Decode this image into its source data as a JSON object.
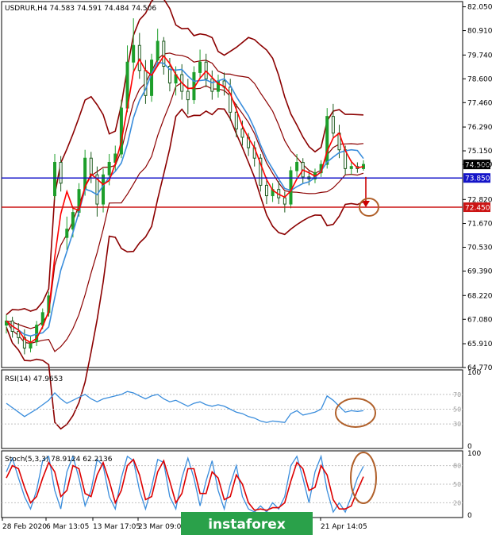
{
  "chart_data": {
    "type": "line",
    "symbol": "USDRUR,H4",
    "header": "USDRUR,H4  74.583 74.591 74.484 74.506",
    "price_axis": {
      "ylim": [
        64.77,
        82.3
      ],
      "ticks": [
        "82.050",
        "80.910",
        "79.740",
        "78.600",
        "77.460",
        "76.290",
        "75.150",
        "74.500",
        "72.820",
        "71.670",
        "70.530",
        "69.390",
        "68.220",
        "67.080",
        "65.910",
        "64.770"
      ],
      "tick_values": [
        82.05,
        80.91,
        79.74,
        78.6,
        77.46,
        76.29,
        75.15,
        74.5,
        72.82,
        71.67,
        70.53,
        69.39,
        68.22,
        67.08,
        65.91,
        64.77
      ]
    },
    "price_tags": [
      {
        "label": "74.500",
        "value": 74.5,
        "color": "#000000"
      },
      {
        "label": "73.850",
        "value": 73.85,
        "color": "#1414c8"
      },
      {
        "label": "72.450",
        "value": 72.45,
        "color": "#cc1414"
      }
    ],
    "x_ticks": [
      "28 Feb 2020",
      "6 Mar 13:05",
      "13 Mar 17:05",
      "23 Mar 09:05",
      "21 Apr 14:05"
    ],
    "candles": [
      {
        "o": 66.8,
        "h": 67.3,
        "l": 66.4,
        "c": 67.0
      },
      {
        "o": 67.0,
        "h": 67.2,
        "l": 66.2,
        "c": 66.5
      },
      {
        "o": 66.5,
        "h": 66.9,
        "l": 65.9,
        "c": 66.2
      },
      {
        "o": 66.2,
        "h": 66.6,
        "l": 65.4,
        "c": 65.7
      },
      {
        "o": 65.7,
        "h": 66.3,
        "l": 65.5,
        "c": 66.0
      },
      {
        "o": 66.0,
        "h": 67.0,
        "l": 65.8,
        "c": 66.8
      },
      {
        "o": 66.8,
        "h": 67.6,
        "l": 66.6,
        "c": 67.4
      },
      {
        "o": 67.4,
        "h": 68.4,
        "l": 67.2,
        "c": 68.2
      },
      {
        "o": 73.0,
        "h": 75.0,
        "l": 72.8,
        "c": 74.6
      },
      {
        "o": 74.6,
        "h": 74.9,
        "l": 73.2,
        "c": 73.6
      },
      {
        "o": 71.0,
        "h": 72.0,
        "l": 70.4,
        "c": 71.4
      },
      {
        "o": 71.4,
        "h": 72.4,
        "l": 71.0,
        "c": 72.2
      },
      {
        "o": 72.2,
        "h": 73.6,
        "l": 72.0,
        "c": 73.3
      },
      {
        "o": 73.3,
        "h": 75.2,
        "l": 73.0,
        "c": 74.8
      },
      {
        "o": 74.8,
        "h": 75.1,
        "l": 73.6,
        "c": 74.0
      },
      {
        "o": 74.0,
        "h": 74.4,
        "l": 72.0,
        "c": 72.6
      },
      {
        "o": 72.6,
        "h": 74.3,
        "l": 72.2,
        "c": 74.0
      },
      {
        "o": 74.0,
        "h": 75.0,
        "l": 73.5,
        "c": 74.6
      },
      {
        "o": 74.6,
        "h": 75.4,
        "l": 74.2,
        "c": 75.0
      },
      {
        "o": 75.0,
        "h": 77.6,
        "l": 74.8,
        "c": 77.2
      },
      {
        "o": 77.2,
        "h": 80.2,
        "l": 77.0,
        "c": 79.4
      },
      {
        "o": 79.4,
        "h": 81.5,
        "l": 79.0,
        "c": 80.2
      },
      {
        "o": 80.2,
        "h": 80.8,
        "l": 78.6,
        "c": 79.0
      },
      {
        "o": 79.0,
        "h": 79.5,
        "l": 77.4,
        "c": 77.8
      },
      {
        "o": 77.8,
        "h": 79.8,
        "l": 77.5,
        "c": 79.5
      },
      {
        "o": 79.5,
        "h": 81.0,
        "l": 79.2,
        "c": 80.4
      },
      {
        "o": 80.4,
        "h": 80.6,
        "l": 78.8,
        "c": 79.2
      },
      {
        "o": 79.2,
        "h": 79.6,
        "l": 78.0,
        "c": 78.4
      },
      {
        "o": 78.4,
        "h": 79.2,
        "l": 77.8,
        "c": 78.8
      },
      {
        "o": 78.8,
        "h": 79.3,
        "l": 77.6,
        "c": 78.0
      },
      {
        "o": 78.0,
        "h": 78.6,
        "l": 76.9,
        "c": 77.6
      },
      {
        "o": 77.6,
        "h": 79.2,
        "l": 77.4,
        "c": 78.9
      },
      {
        "o": 78.9,
        "h": 80.0,
        "l": 78.6,
        "c": 79.4
      },
      {
        "o": 79.4,
        "h": 79.8,
        "l": 78.2,
        "c": 78.6
      },
      {
        "o": 78.6,
        "h": 79.0,
        "l": 77.6,
        "c": 78.0
      },
      {
        "o": 78.0,
        "h": 78.8,
        "l": 77.7,
        "c": 78.5
      },
      {
        "o": 78.5,
        "h": 78.9,
        "l": 77.8,
        "c": 78.2
      },
      {
        "o": 78.2,
        "h": 78.6,
        "l": 76.6,
        "c": 77.0
      },
      {
        "o": 77.0,
        "h": 77.4,
        "l": 75.8,
        "c": 76.2
      },
      {
        "o": 76.2,
        "h": 76.6,
        "l": 75.4,
        "c": 75.8
      },
      {
        "o": 75.8,
        "h": 76.0,
        "l": 74.9,
        "c": 75.3
      },
      {
        "o": 75.3,
        "h": 75.6,
        "l": 74.4,
        "c": 74.8
      },
      {
        "o": 74.8,
        "h": 75.0,
        "l": 73.2,
        "c": 73.5
      },
      {
        "o": 73.5,
        "h": 73.9,
        "l": 72.6,
        "c": 73.0
      },
      {
        "o": 73.0,
        "h": 73.6,
        "l": 72.7,
        "c": 73.3
      },
      {
        "o": 73.3,
        "h": 73.7,
        "l": 72.6,
        "c": 72.9
      },
      {
        "o": 72.9,
        "h": 73.2,
        "l": 72.2,
        "c": 72.6
      },
      {
        "o": 72.6,
        "h": 74.4,
        "l": 72.4,
        "c": 74.2
      },
      {
        "o": 74.2,
        "h": 75.0,
        "l": 73.9,
        "c": 74.6
      },
      {
        "o": 74.6,
        "h": 74.8,
        "l": 73.6,
        "c": 73.9
      },
      {
        "o": 73.9,
        "h": 74.2,
        "l": 73.5,
        "c": 73.8
      },
      {
        "o": 73.8,
        "h": 74.3,
        "l": 73.6,
        "c": 74.1
      },
      {
        "o": 74.1,
        "h": 74.7,
        "l": 73.9,
        "c": 74.5
      },
      {
        "o": 74.5,
        "h": 77.2,
        "l": 74.3,
        "c": 76.8
      },
      {
        "o": 76.8,
        "h": 77.4,
        "l": 75.8,
        "c": 76.0
      },
      {
        "o": 76.0,
        "h": 76.4,
        "l": 74.8,
        "c": 75.2
      },
      {
        "o": 75.2,
        "h": 75.4,
        "l": 74.0,
        "c": 74.3
      },
      {
        "o": 74.3,
        "h": 74.7,
        "l": 74.0,
        "c": 74.4
      },
      {
        "o": 74.4,
        "h": 74.6,
        "l": 74.1,
        "c": 74.3
      },
      {
        "o": 74.3,
        "h": 74.7,
        "l": 74.2,
        "c": 74.5
      }
    ],
    "rsi": {
      "label": "RSI(14) 47.9653",
      "ylim": [
        0,
        100
      ],
      "levels": [
        {
          "value": 70,
          "label": "70"
        },
        {
          "value": 50,
          "label": "50"
        },
        {
          "value": 30,
          "label": "30"
        }
      ],
      "axis_ticks": [
        {
          "value": 100,
          "label": "100"
        },
        {
          "value": 0,
          "label": "0"
        }
      ],
      "values": [
        58,
        52,
        46,
        40,
        45,
        50,
        56,
        62,
        72,
        64,
        58,
        62,
        66,
        70,
        64,
        60,
        64,
        66,
        68,
        70,
        74,
        72,
        68,
        64,
        68,
        70,
        64,
        60,
        62,
        58,
        54,
        58,
        60,
        56,
        54,
        56,
        54,
        50,
        46,
        44,
        40,
        38,
        34,
        32,
        34,
        33,
        32,
        44,
        48,
        42,
        44,
        46,
        50,
        68,
        62,
        54,
        46,
        48,
        47,
        48
      ]
    },
    "stoch": {
      "label": "Stoch(5,3,3) 78.9124 62.2136",
      "ylim": [
        0,
        100
      ],
      "levels": [
        {
          "value": 80,
          "label": "80"
        },
        {
          "value": 50,
          "label": "50"
        },
        {
          "value": 20,
          "label": "20"
        }
      ],
      "axis_ticks": [
        {
          "value": 100,
          "label": "100"
        },
        {
          "value": 0,
          "label": "0"
        }
      ],
      "main": [
        70,
        92,
        60,
        30,
        10,
        40,
        88,
        95,
        40,
        10,
        70,
        95,
        60,
        15,
        40,
        90,
        80,
        30,
        10,
        60,
        95,
        88,
        40,
        10,
        45,
        90,
        85,
        30,
        10,
        60,
        92,
        60,
        15,
        55,
        88,
        40,
        10,
        50,
        80,
        30,
        10,
        5,
        15,
        5,
        20,
        10,
        30,
        80,
        95,
        60,
        20,
        70,
        95,
        40,
        5,
        20,
        5,
        30,
        60,
        79
      ],
      "signal": [
        60,
        80,
        75,
        45,
        20,
        30,
        60,
        85,
        70,
        30,
        40,
        80,
        75,
        35,
        30,
        65,
        85,
        55,
        20,
        40,
        80,
        90,
        65,
        25,
        30,
        70,
        88,
        55,
        20,
        35,
        75,
        75,
        35,
        35,
        70,
        60,
        25,
        30,
        65,
        50,
        20,
        8,
        10,
        8,
        12,
        12,
        20,
        55,
        85,
        75,
        40,
        45,
        80,
        65,
        25,
        10,
        10,
        15,
        40,
        62
      ]
    },
    "annotations": {
      "arrow_target": 72.45,
      "circle_price_center": 72.45
    },
    "watermark": "instaforex",
    "colors": {
      "bull": "#1d9e2a",
      "bear": "#1d5a1d",
      "band": "#8b0000",
      "ma_fast": "#ff0000",
      "ma_slow": "#3a8ddc",
      "support": "#0000cc",
      "resistance": "#cc0000",
      "rsi": "#3a8ddc",
      "stoch_main": "#3a8ddc",
      "stoch_signal": "#dd0000",
      "circle": "#b0602a"
    }
  }
}
